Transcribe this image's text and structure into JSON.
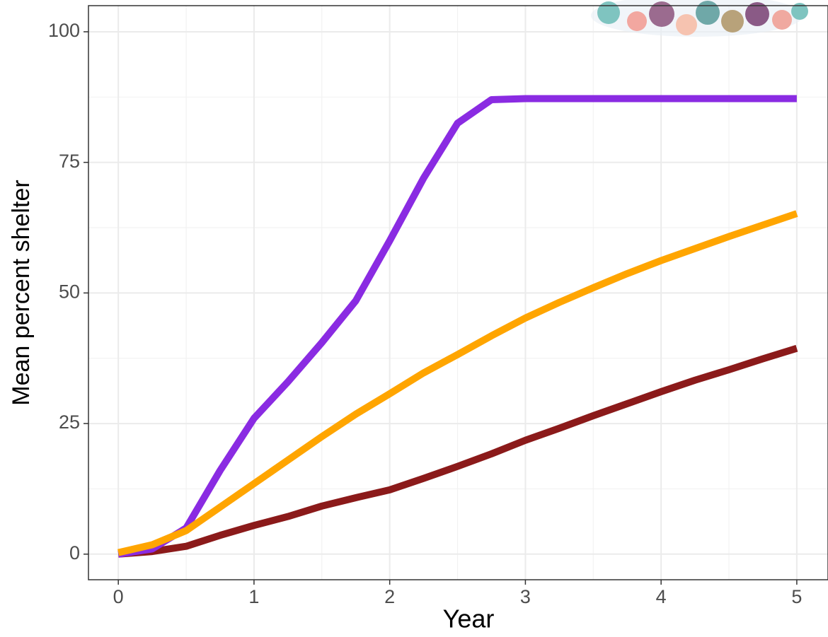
{
  "chart_data": {
    "type": "line",
    "x_label": "Year",
    "y_label": "Mean percent shelter",
    "x": [
      0,
      0.25,
      0.5,
      0.75,
      1,
      1.25,
      1.5,
      1.75,
      2,
      2.25,
      2.5,
      2.75,
      3,
      3.25,
      3.5,
      3.75,
      4,
      4.25,
      4.5,
      4.75,
      5
    ],
    "series": [
      {
        "color": "#8b1a1a",
        "values": [
          0,
          0.5,
          1.5,
          3.6,
          5.5,
          7.2,
          9.2,
          10.8,
          12.3,
          14.5,
          16.8,
          19.2,
          21.8,
          24.1,
          26.5,
          28.8,
          31.1,
          33.3,
          35.3,
          37.4,
          39.4
        ]
      },
      {
        "color": "#8a2be2",
        "values": [
          0,
          1,
          5,
          16,
          26,
          33,
          40.5,
          48.5,
          60,
          72,
          82.5,
          87,
          87.2,
          87.2,
          87.2,
          87.2,
          87.2,
          87.2,
          87.2,
          87.2,
          87.2
        ]
      },
      {
        "color": "#ffa500",
        "values": [
          0.3,
          1.8,
          4.5,
          9,
          13.5,
          18,
          22.5,
          26.8,
          30.7,
          34.7,
          38.2,
          41.8,
          45.2,
          48.2,
          51,
          53.7,
          56.2,
          58.5,
          60.8,
          63,
          65.2
        ]
      }
    ],
    "xlim": [
      -0.22,
      5.23
    ],
    "ylim": [
      -4.9,
      105
    ],
    "xticks": [
      0,
      1,
      2,
      3,
      4,
      5
    ],
    "yticks": [
      0,
      25,
      50,
      75,
      100
    ],
    "grid": true
  }
}
